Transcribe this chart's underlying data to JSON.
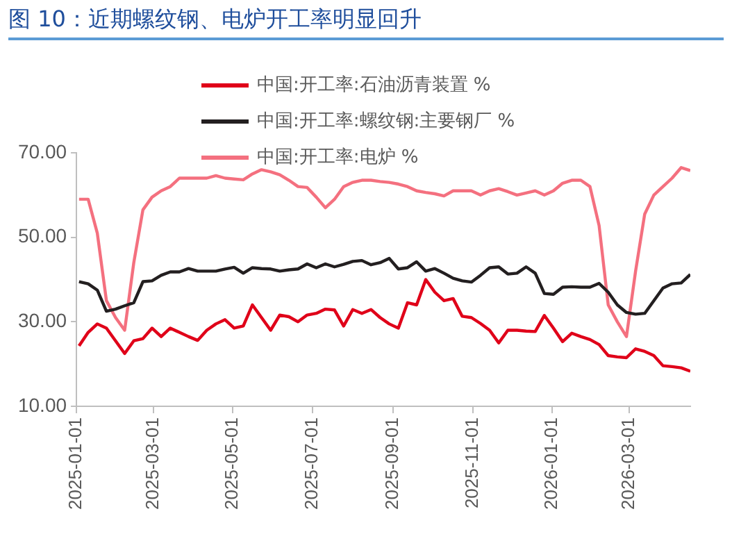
{
  "chart_data": {
    "type": "line",
    "title": "图 10：近期螺纹钢、电炉开工率明显回升",
    "x": [
      "2025-01-03",
      "2025-01-10",
      "2025-01-17",
      "2025-01-24",
      "2025-01-31",
      "2025-02-07",
      "2025-02-14",
      "2025-02-21",
      "2025-02-28",
      "2025-03-07",
      "2025-03-14",
      "2025-03-21",
      "2025-03-28",
      "2025-04-04",
      "2025-04-11",
      "2025-04-18",
      "2025-04-25",
      "2025-05-02",
      "2025-05-09",
      "2025-05-16",
      "2025-05-23",
      "2025-05-30",
      "2025-06-06",
      "2025-06-13",
      "2025-06-20",
      "2025-06-27",
      "2025-07-04",
      "2025-07-11",
      "2025-07-18",
      "2025-07-25",
      "2025-08-01",
      "2025-08-08",
      "2025-08-15",
      "2025-08-22",
      "2025-08-29",
      "2025-09-05",
      "2025-09-12",
      "2025-09-19",
      "2025-09-26",
      "2025-10-03",
      "2025-10-10",
      "2025-10-17",
      "2025-10-24",
      "2025-10-31",
      "2025-11-07",
      "2025-11-14",
      "2025-11-21",
      "2025-11-28",
      "2025-12-05",
      "2025-12-12",
      "2025-12-19",
      "2025-12-26",
      "2026-01-02",
      "2026-01-09",
      "2026-01-16",
      "2026-01-23",
      "2026-01-30",
      "2026-02-06",
      "2026-02-13",
      "2026-02-20",
      "2026-02-27",
      "2026-03-06",
      "2026-03-13",
      "2026-03-20",
      "2026-03-27",
      "2026-04-03",
      "2026-04-10",
      "2026-04-17"
    ],
    "series": [
      {
        "name": "中国:开工率:石油沥青装置 %",
        "color": "#e00019",
        "values": [
          24.3,
          27.5,
          29.5,
          28.5,
          25.5,
          22.5,
          25.5,
          26,
          28.5,
          26.5,
          28.5,
          27.5,
          26.5,
          25.6,
          28,
          29.5,
          30.5,
          28.5,
          29,
          34,
          31,
          28,
          31.6,
          31.2,
          30,
          31.6,
          32,
          33,
          32.8,
          29,
          32.9,
          32,
          32.9,
          31,
          29.5,
          28.5,
          34.5,
          34,
          40,
          37,
          35,
          35.5,
          31.3,
          31,
          29.6,
          28,
          25,
          28,
          28,
          27.8,
          27.7,
          31.5,
          28.5,
          25.3,
          27.3,
          26.5,
          25.8,
          24.6,
          22,
          21.7,
          21.5,
          23.6,
          23,
          22,
          19.6,
          19.4,
          19.1,
          18.3
        ]
      },
      {
        "name": "中国:开工率:螺纹钢:主要钢厂 %",
        "color": "#231f20",
        "values": [
          39.5,
          39,
          37.5,
          32.5,
          33,
          33.8,
          34.5,
          39.5,
          39.7,
          41,
          41.8,
          41.8,
          42.6,
          42,
          42,
          42,
          42.5,
          42.9,
          41.5,
          42.8,
          42.6,
          42.5,
          42,
          42.3,
          42.5,
          43.7,
          42.8,
          43.7,
          43,
          43.6,
          44.3,
          44.5,
          43.5,
          44,
          45,
          42.5,
          42.8,
          44.2,
          42,
          42.6,
          41.5,
          40.3,
          39.7,
          39.4,
          41,
          42.8,
          43,
          41.3,
          41.5,
          43,
          41.5,
          36.7,
          36.5,
          38.2,
          38.3,
          38.2,
          38.2,
          39.1,
          37,
          34,
          32.2,
          31.8,
          32,
          35,
          38,
          39,
          39.2,
          41.2
        ]
      },
      {
        "name": "中国:开工率:电炉 %",
        "color": "#f4707f",
        "values": [
          59,
          59,
          51,
          35,
          31,
          28,
          44,
          56.5,
          59.5,
          61,
          62,
          64,
          64,
          64,
          64,
          64.6,
          64,
          63.8,
          63.6,
          65,
          66,
          65.5,
          64.8,
          63.5,
          62,
          61.8,
          59.5,
          57,
          59,
          62,
          63,
          63.5,
          63.5,
          63.2,
          63,
          62.6,
          62,
          61,
          60.6,
          60.3,
          59.8,
          61,
          61,
          61,
          60,
          61,
          61.5,
          60.8,
          60,
          60.5,
          61,
          60,
          61,
          62.8,
          63.5,
          63.5,
          62,
          52.8,
          34,
          30,
          26.5,
          42,
          55.5,
          60,
          62,
          64,
          66.5,
          65.8
        ]
      }
    ],
    "xlim": [
      "2025-01-01",
      "2026-04-17"
    ],
    "xticks": [
      "2025-01-01",
      "2025-03-01",
      "2025-05-01",
      "2025-07-01",
      "2025-09-01",
      "2025-11-01",
      "2026-01-01",
      "2026-03-01"
    ],
    "ylim": [
      10,
      70
    ],
    "yticks": [
      {
        "value": 10,
        "label": "10.00"
      },
      {
        "value": 30,
        "label": "30.00"
      },
      {
        "value": 50,
        "label": "50.00"
      },
      {
        "value": 70,
        "label": "70.00"
      }
    ],
    "grid": false,
    "legend": "top",
    "marker": "none",
    "line_style": "solid"
  }
}
